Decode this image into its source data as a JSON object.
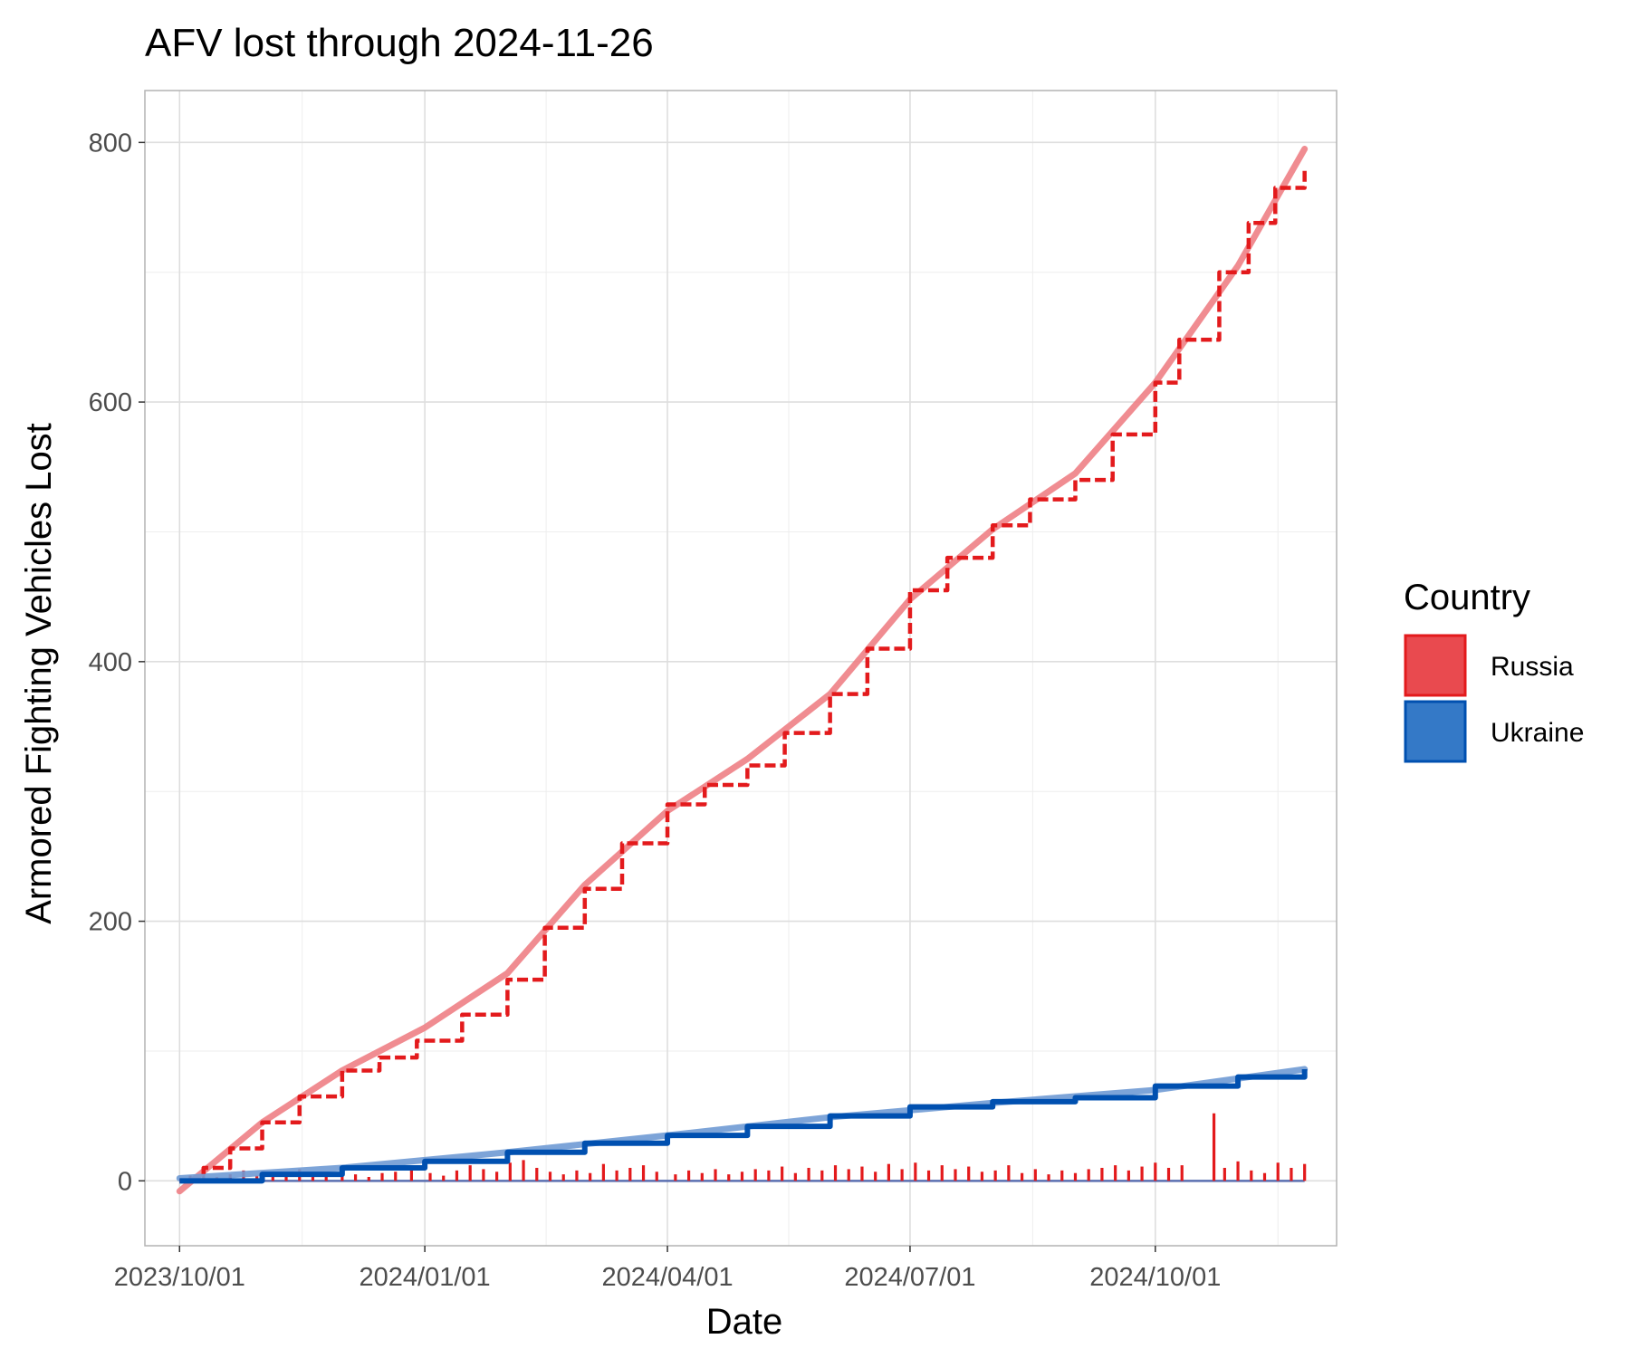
{
  "chart_data": {
    "type": "line",
    "title": "AFV lost through 2024-11-26",
    "xlabel": "Date",
    "ylabel": "Armored Fighting Vehicles Lost",
    "xlim": [
      "2023-09-18",
      "2024-12-08"
    ],
    "ylim": [
      -50,
      840
    ],
    "x_ticks": [
      "2023-10-01",
      "2024-01-01",
      "2024-04-01",
      "2024-07-01",
      "2024-10-01"
    ],
    "x_tick_labels": [
      "2023/10/01",
      "2024/01/01",
      "2024/04/01",
      "2024/07/01",
      "2024/10/01"
    ],
    "y_ticks": [
      0,
      200,
      400,
      600,
      800
    ],
    "y_tick_labels": [
      "0",
      "200",
      "400",
      "600",
      "800"
    ],
    "grid": true,
    "legend": {
      "title": "Country",
      "position": "right",
      "entries": [
        {
          "label": "Russia",
          "color": "#e31a1c"
        },
        {
          "label": "Ukraine",
          "color": "#0050b0"
        }
      ]
    },
    "series": [
      {
        "name": "Russia",
        "color": "#e31a1c",
        "trend_color": "#ee7f85",
        "cumulative": [
          [
            "2023-10-01",
            0
          ],
          [
            "2023-10-10",
            10
          ],
          [
            "2023-10-20",
            25
          ],
          [
            "2023-11-01",
            45
          ],
          [
            "2023-11-15",
            65
          ],
          [
            "2023-12-01",
            85
          ],
          [
            "2023-12-15",
            95
          ],
          [
            "2023-12-29",
            108
          ],
          [
            "2024-01-15",
            128
          ],
          [
            "2024-02-01",
            155
          ],
          [
            "2024-02-15",
            195
          ],
          [
            "2024-03-01",
            225
          ],
          [
            "2024-03-15",
            260
          ],
          [
            "2024-04-01",
            290
          ],
          [
            "2024-04-15",
            305
          ],
          [
            "2024-05-01",
            320
          ],
          [
            "2024-05-15",
            345
          ],
          [
            "2024-06-01",
            375
          ],
          [
            "2024-06-15",
            410
          ],
          [
            "2024-07-01",
            455
          ],
          [
            "2024-07-15",
            480
          ],
          [
            "2024-08-01",
            505
          ],
          [
            "2024-08-15",
            525
          ],
          [
            "2024-09-01",
            540
          ],
          [
            "2024-09-15",
            575
          ],
          [
            "2024-10-01",
            615
          ],
          [
            "2024-10-10",
            648
          ],
          [
            "2024-10-21",
            648
          ],
          [
            "2024-10-25",
            700
          ],
          [
            "2024-11-05",
            738
          ],
          [
            "2024-11-15",
            765
          ],
          [
            "2024-11-26",
            780
          ]
        ],
        "trend": [
          [
            "2023-10-01",
            -8
          ],
          [
            "2023-11-01",
            45
          ],
          [
            "2023-12-01",
            85
          ],
          [
            "2024-01-01",
            118
          ],
          [
            "2024-02-01",
            160
          ],
          [
            "2024-03-01",
            228
          ],
          [
            "2024-04-01",
            285
          ],
          [
            "2024-05-01",
            325
          ],
          [
            "2024-06-01",
            375
          ],
          [
            "2024-07-01",
            448
          ],
          [
            "2024-08-01",
            502
          ],
          [
            "2024-09-01",
            545
          ],
          [
            "2024-10-01",
            615
          ],
          [
            "2024-11-01",
            705
          ],
          [
            "2024-11-26",
            795
          ]
        ],
        "daily": [
          [
            "2023-10-05",
            4
          ],
          [
            "2023-10-10",
            6
          ],
          [
            "2023-10-15",
            3
          ],
          [
            "2023-10-20",
            5
          ],
          [
            "2023-10-25",
            8
          ],
          [
            "2023-10-30",
            4
          ],
          [
            "2023-11-05",
            7
          ],
          [
            "2023-11-10",
            5
          ],
          [
            "2023-11-15",
            9
          ],
          [
            "2023-11-20",
            6
          ],
          [
            "2023-11-25",
            4
          ],
          [
            "2023-12-01",
            8
          ],
          [
            "2023-12-06",
            5
          ],
          [
            "2023-12-11",
            3
          ],
          [
            "2023-12-16",
            6
          ],
          [
            "2023-12-21",
            7
          ],
          [
            "2023-12-27",
            10
          ],
          [
            "2024-01-03",
            6
          ],
          [
            "2024-01-08",
            4
          ],
          [
            "2024-01-13",
            8
          ],
          [
            "2024-01-18",
            12
          ],
          [
            "2024-01-23",
            9
          ],
          [
            "2024-01-28",
            7
          ],
          [
            "2024-02-02",
            14
          ],
          [
            "2024-02-07",
            16
          ],
          [
            "2024-02-12",
            10
          ],
          [
            "2024-02-17",
            7
          ],
          [
            "2024-02-22",
            5
          ],
          [
            "2024-02-27",
            8
          ],
          [
            "2024-03-03",
            6
          ],
          [
            "2024-03-08",
            13
          ],
          [
            "2024-03-13",
            8
          ],
          [
            "2024-03-18",
            10
          ],
          [
            "2024-03-23",
            12
          ],
          [
            "2024-03-28",
            7
          ],
          [
            "2024-04-04",
            5
          ],
          [
            "2024-04-09",
            8
          ],
          [
            "2024-04-14",
            6
          ],
          [
            "2024-04-19",
            9
          ],
          [
            "2024-04-24",
            5
          ],
          [
            "2024-04-29",
            7
          ],
          [
            "2024-05-04",
            9
          ],
          [
            "2024-05-09",
            8
          ],
          [
            "2024-05-14",
            11
          ],
          [
            "2024-05-19",
            6
          ],
          [
            "2024-05-24",
            10
          ],
          [
            "2024-05-29",
            8
          ],
          [
            "2024-06-03",
            12
          ],
          [
            "2024-06-08",
            9
          ],
          [
            "2024-06-13",
            11
          ],
          [
            "2024-06-18",
            7
          ],
          [
            "2024-06-23",
            13
          ],
          [
            "2024-06-28",
            9
          ],
          [
            "2024-07-03",
            14
          ],
          [
            "2024-07-08",
            8
          ],
          [
            "2024-07-13",
            12
          ],
          [
            "2024-07-18",
            9
          ],
          [
            "2024-07-23",
            11
          ],
          [
            "2024-07-28",
            7
          ],
          [
            "2024-08-02",
            8
          ],
          [
            "2024-08-07",
            12
          ],
          [
            "2024-08-12",
            6
          ],
          [
            "2024-08-17",
            9
          ],
          [
            "2024-08-22",
            5
          ],
          [
            "2024-08-27",
            8
          ],
          [
            "2024-09-01",
            6
          ],
          [
            "2024-09-06",
            9
          ],
          [
            "2024-09-11",
            10
          ],
          [
            "2024-09-16",
            12
          ],
          [
            "2024-09-21",
            8
          ],
          [
            "2024-09-26",
            11
          ],
          [
            "2024-10-01",
            14
          ],
          [
            "2024-10-06",
            10
          ],
          [
            "2024-10-11",
            12
          ],
          [
            "2024-10-23",
            52
          ],
          [
            "2024-10-27",
            10
          ],
          [
            "2024-11-01",
            15
          ],
          [
            "2024-11-06",
            8
          ],
          [
            "2024-11-11",
            6
          ],
          [
            "2024-11-16",
            14
          ],
          [
            "2024-11-21",
            10
          ],
          [
            "2024-11-26",
            13
          ]
        ]
      },
      {
        "name": "Ukraine",
        "color": "#0050b0",
        "trend_color": "#6f9ad4",
        "cumulative": [
          [
            "2023-10-01",
            0
          ],
          [
            "2023-11-01",
            5
          ],
          [
            "2023-12-01",
            10
          ],
          [
            "2024-01-01",
            15
          ],
          [
            "2024-02-01",
            22
          ],
          [
            "2024-03-01",
            29
          ],
          [
            "2024-04-01",
            35
          ],
          [
            "2024-05-01",
            42
          ],
          [
            "2024-06-01",
            50
          ],
          [
            "2024-07-01",
            57
          ],
          [
            "2024-08-01",
            61
          ],
          [
            "2024-09-01",
            64
          ],
          [
            "2024-10-01",
            73
          ],
          [
            "2024-11-01",
            80
          ],
          [
            "2024-11-26",
            86
          ]
        ],
        "trend": [
          [
            "2023-10-01",
            2
          ],
          [
            "2023-12-01",
            10
          ],
          [
            "2024-02-01",
            22
          ],
          [
            "2024-04-01",
            35
          ],
          [
            "2024-06-01",
            49
          ],
          [
            "2024-08-01",
            60
          ],
          [
            "2024-10-01",
            70
          ],
          [
            "2024-11-26",
            86
          ]
        ]
      }
    ]
  }
}
